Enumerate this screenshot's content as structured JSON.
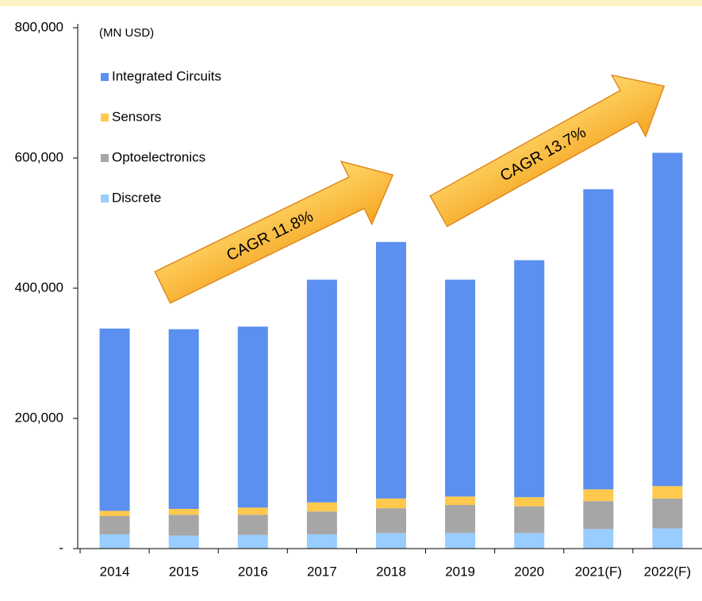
{
  "chart_data": {
    "type": "stacked_bar",
    "unit_label": "(MN USD)",
    "annotations": [
      "CAGR 11.8%",
      "CAGR 13.7%"
    ],
    "categories": [
      "2014",
      "2015",
      "2016",
      "2017",
      "2018",
      "2019",
      "2020",
      "2021(F)",
      "2022(F)"
    ],
    "series": [
      {
        "name": "Integrated Circuits",
        "color": "#5b8ff0",
        "values": [
          280000,
          276000,
          278000,
          342000,
          394000,
          333000,
          364000,
          461000,
          512000
        ]
      },
      {
        "name": "Sensors",
        "color": "#ffc94d",
        "values": [
          8000,
          9000,
          11000,
          14000,
          15000,
          13000,
          14000,
          18000,
          19000
        ]
      },
      {
        "name": "Optoelectronics",
        "color": "#a6a6a6",
        "values": [
          28000,
          32000,
          31000,
          35000,
          38000,
          43000,
          41000,
          43000,
          46000
        ]
      },
      {
        "name": "Discrete",
        "color": "#99ccff",
        "values": [
          22000,
          20000,
          21000,
          22000,
          24000,
          24000,
          24000,
          30000,
          31000
        ]
      }
    ],
    "ylim": [
      0,
      800000
    ],
    "yticks": [
      {
        "value": 0,
        "label": "-"
      },
      {
        "value": 200000,
        "label": "200,000"
      },
      {
        "value": 400000,
        "label": "400,000"
      },
      {
        "value": 600000,
        "label": "600,000"
      },
      {
        "value": 800000,
        "label": "800,000"
      }
    ]
  }
}
